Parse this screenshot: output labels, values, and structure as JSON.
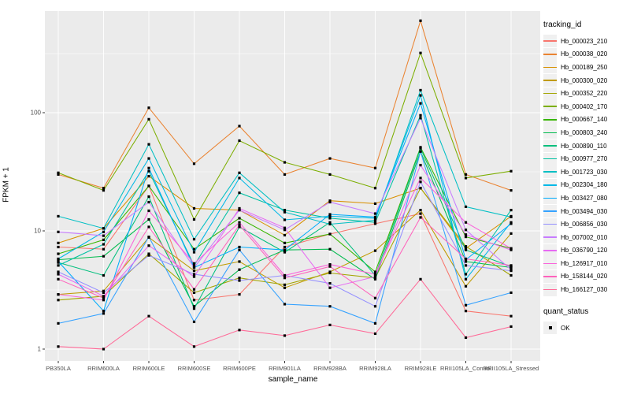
{
  "chart_data": {
    "type": "line",
    "title": "",
    "xlabel": "sample_name",
    "ylabel": "FPKM + 1",
    "y_scale": "log10",
    "y_ticks": [
      "1",
      "10",
      "100"
    ],
    "ylim": [
      0.72,
      720
    ],
    "grid": "on",
    "legend_position": "right",
    "marker": "black-square",
    "categories": [
      "PB350LA",
      "RRIM600LA",
      "RRIM600LE",
      "RRIM600SE",
      "RRIM600PE",
      "RRIM901LA",
      "RRIM928BA",
      "RRIM928LA",
      "RRIM928LE",
      "RRII105LA_Control",
      "RRII105LA_Stressed"
    ],
    "legend": {
      "series_title": "tracking_id",
      "shape_title": "quant_status",
      "shape_label": "OK"
    },
    "series": [
      {
        "name": "Hb_000023_210",
        "color": "#F8766D",
        "values": [
          7.3,
          7.0,
          24,
          2.6,
          2.9,
          7.3,
          9.4,
          11.5,
          14,
          2.1,
          1.9
        ]
      },
      {
        "name": "Hb_000038_020",
        "color": "#EA8331",
        "values": [
          30,
          23,
          110,
          37,
          77,
          30,
          41,
          34,
          600,
          30,
          22
        ]
      },
      {
        "name": "Hb_000189_250",
        "color": "#D89000",
        "values": [
          7.9,
          10.5,
          29,
          15.5,
          15,
          9.2,
          18,
          17,
          23,
          7.1,
          13.3
        ]
      },
      {
        "name": "Hb_000300_020",
        "color": "#C09B00",
        "values": [
          2.9,
          3.1,
          8.8,
          4.6,
          5.5,
          3.3,
          4.5,
          6.8,
          15,
          3.4,
          9.5
        ]
      },
      {
        "name": "Hb_000352_220",
        "color": "#A3A500",
        "values": [
          2.6,
          2.8,
          6.4,
          3.0,
          4.0,
          3.5,
          4.4,
          4.0,
          23,
          7.4,
          4.2
        ]
      },
      {
        "name": "Hb_000402_170",
        "color": "#7CAE00",
        "values": [
          31,
          22,
          88,
          12.5,
          58,
          38,
          30,
          23,
          320,
          28,
          32
        ]
      },
      {
        "name": "Hb_000667_140",
        "color": "#39B600",
        "values": [
          6.4,
          8.4,
          24,
          7.0,
          12.8,
          7.9,
          9.4,
          4.5,
          51,
          8.9,
          7.1
        ]
      },
      {
        "name": "Hb_000803_240",
        "color": "#00BB4E",
        "values": [
          5.7,
          6.1,
          12.5,
          2.3,
          4.7,
          6.9,
          7.0,
          3.9,
          47,
          5.5,
          4.9
        ]
      },
      {
        "name": "Hb_000890_110",
        "color": "#00BF7D",
        "values": [
          5.4,
          4.2,
          19.5,
          2.2,
          10.8,
          6.6,
          11.8,
          4.2,
          50,
          6.9,
          5.0
        ]
      },
      {
        "name": "Hb_000977_270",
        "color": "#00C1A3",
        "values": [
          5.1,
          7.7,
          32,
          5.1,
          21,
          15,
          12.8,
          11.8,
          95,
          4.3,
          15
        ]
      },
      {
        "name": "Hb_001723_030",
        "color": "#00BFC4",
        "values": [
          13.3,
          10.5,
          54,
          8.5,
          31,
          14.4,
          11.4,
          12.3,
          155,
          16,
          13.1
        ]
      },
      {
        "name": "Hb_002304_180",
        "color": "#00B8E7",
        "values": [
          5.8,
          9.8,
          41,
          6.6,
          28,
          12.4,
          13.3,
          12.8,
          140,
          3.9,
          11.8
        ]
      },
      {
        "name": "Hb_003427_080",
        "color": "#00ACFC",
        "values": [
          5.5,
          2.1,
          34,
          4.9,
          7.3,
          6.9,
          13.8,
          13.1,
          120,
          5.7,
          11.5
        ]
      },
      {
        "name": "Hb_003494_030",
        "color": "#35A2FF",
        "values": [
          1.65,
          2.0,
          8.9,
          1.7,
          6.9,
          2.4,
          2.3,
          1.65,
          47,
          2.35,
          3.0
        ]
      },
      {
        "name": "Hb_006856_030",
        "color": "#9590FF",
        "values": [
          4.5,
          3.0,
          6.2,
          4.3,
          3.8,
          4.2,
          3.6,
          2.3,
          26,
          5.1,
          4.6
        ]
      },
      {
        "name": "Hb_007002_010",
        "color": "#C77CFF",
        "values": [
          9.8,
          9.1,
          17.5,
          4.9,
          15,
          10.2,
          17.5,
          14,
          90,
          10.2,
          4.7
        ]
      },
      {
        "name": "Hb_036790_120",
        "color": "#E76BF3",
        "values": [
          4.3,
          2.8,
          7.5,
          4.1,
          15.5,
          10.6,
          3.3,
          4.1,
          36,
          9.3,
          6.9
        ]
      },
      {
        "name": "Hb_126917_010",
        "color": "#FA62DB",
        "values": [
          2.9,
          2.6,
          14.8,
          5.3,
          11.8,
          4.2,
          5.2,
          4.3,
          28,
          11.8,
          7.1
        ]
      },
      {
        "name": "Hb_158144_020",
        "color": "#FF62BC",
        "values": [
          3.9,
          2.7,
          10.8,
          3.2,
          11.2,
          4.0,
          5.0,
          2.7,
          13,
          5.8,
          5.1
        ]
      },
      {
        "name": "Hb_166127_030",
        "color": "#FF6A98",
        "values": [
          1.05,
          1.0,
          1.9,
          1.05,
          1.45,
          1.3,
          1.6,
          1.35,
          3.9,
          1.25,
          1.55
        ]
      }
    ]
  },
  "style": {
    "panel_bg": "#EBEBEB",
    "grid_color": "#FFFFFF",
    "tick_label_color": "#4D4D4D",
    "tick_mark_color": "#333333",
    "point_color": "#000000",
    "legend_key_bg": "#F0F0F0"
  }
}
